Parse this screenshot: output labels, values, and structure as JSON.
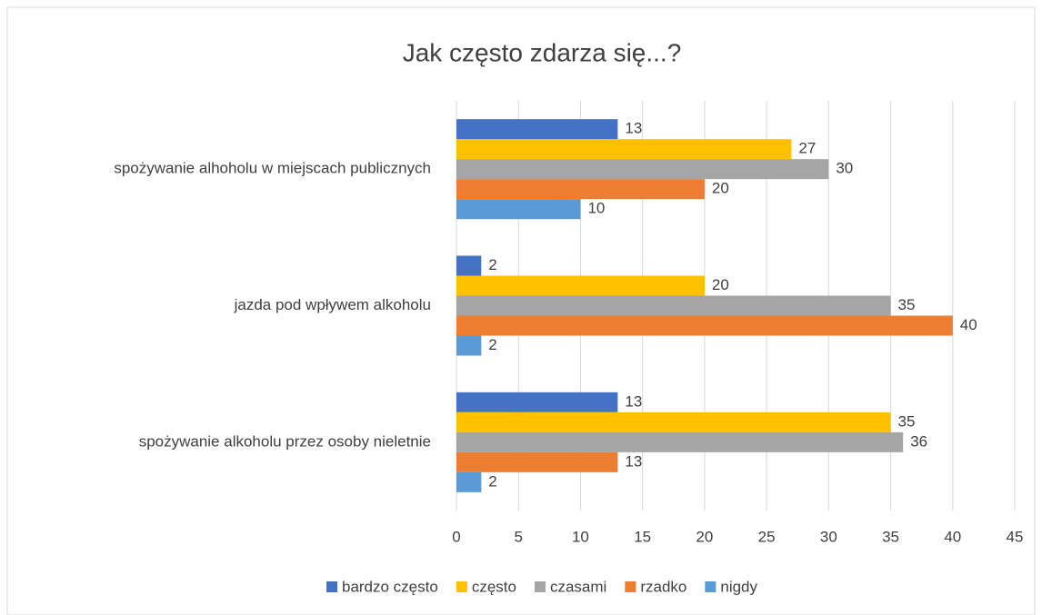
{
  "chart_data": {
    "type": "bar",
    "orientation": "horizontal",
    "title": "Jak często zdarza się...?",
    "categories": [
      "spożywanie alhoholu w miejscach publicznych",
      "jazda pod wpływem alkoholu",
      "spożywanie alkoholu przez osoby nieletnie"
    ],
    "series": [
      {
        "name": "bardzo często",
        "color": "#4472c4",
        "values": [
          13,
          2,
          13
        ]
      },
      {
        "name": "często",
        "color": "#ffc000",
        "values": [
          27,
          20,
          35
        ]
      },
      {
        "name": "czasami",
        "color": "#a5a5a5",
        "values": [
          30,
          35,
          36
        ]
      },
      {
        "name": "rzadko",
        "color": "#ed7d31",
        "values": [
          20,
          40,
          13
        ]
      },
      {
        "name": "nigdy",
        "color": "#5b9bd5",
        "values": [
          10,
          2,
          2
        ]
      }
    ],
    "xlim": [
      0,
      45
    ],
    "xticks": [
      0,
      5,
      10,
      15,
      20,
      25,
      30,
      35,
      40,
      45
    ],
    "grid": true,
    "legend": "bottom"
  }
}
